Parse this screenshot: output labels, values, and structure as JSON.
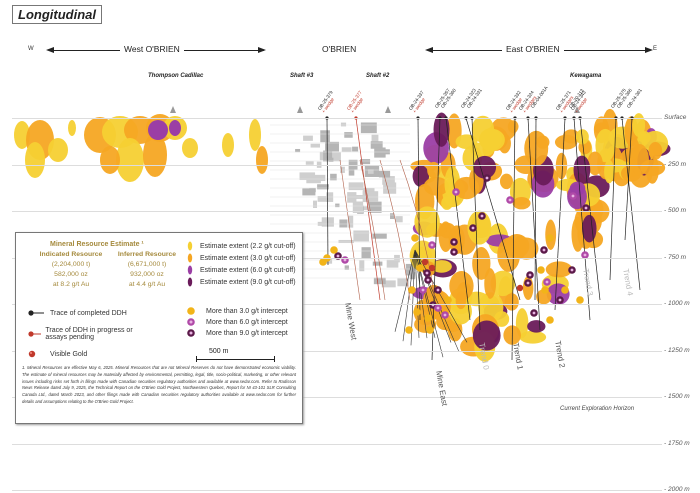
{
  "title": "Longitudinal",
  "directions": {
    "west": "W",
    "east": "E"
  },
  "zones": {
    "west": "West O'BRIEN",
    "center": "O'BRIEN",
    "east": "East O'BRIEN"
  },
  "places": [
    "Thompson Cadillac",
    "Shaft #3",
    "Shaft #2",
    "Kewagama"
  ],
  "drill_holes": [
    {
      "id": "OB-25-379",
      "note": "+ wedge",
      "status": "completed"
    },
    {
      "id": "OB-25-377",
      "note": "+ wedge",
      "status": "in-progress"
    },
    {
      "id": "OB-24-337",
      "note": "+ wedge",
      "status": "completed"
    },
    {
      "id": "OB-25-357",
      "note": "",
      "status": "completed"
    },
    {
      "id": "OB-25-360",
      "note": "",
      "status": "completed"
    },
    {
      "id": "OB-24-323",
      "note": "",
      "status": "completed"
    },
    {
      "id": "OB-24-331",
      "note": "",
      "status": "completed"
    },
    {
      "id": "OB-24-332",
      "note": "+ wedge",
      "status": "completed"
    },
    {
      "id": "OB-24-324",
      "note": "+ wedges",
      "status": "completed"
    },
    {
      "id": "OB-04-001A",
      "note": "",
      "status": "completed"
    },
    {
      "id": "OB-25-371",
      "note": "+ wedges",
      "status": "completed"
    },
    {
      "id": "OB-20-113",
      "note": "",
      "status": "completed"
    },
    {
      "id": "OB-24-343",
      "note": "+ wedge",
      "status": "completed"
    },
    {
      "id": "OB-25-375",
      "note": "",
      "status": "completed"
    },
    {
      "id": "OB-25-366",
      "note": "",
      "status": "completed"
    },
    {
      "id": "OB-24-361",
      "note": "",
      "status": "completed"
    }
  ],
  "depth_axis": [
    "Surface",
    "- 250 m",
    "- 500 m",
    "- 750 m",
    "- 1000 m",
    "- 1250 m",
    "- 1500 m",
    "- 1750 m",
    "- 2000 m"
  ],
  "trends": [
    "Mine West",
    "Mine East",
    "Trend 0",
    "Trend 1",
    "Trend 2",
    "Trend 3",
    "Trend 4"
  ],
  "horizon_label": "Current Exploration Horizon",
  "legend": {
    "mre_title": "Mineral Resource Estimate ¹",
    "indicated": {
      "label": "Indicated Resource",
      "tonnes": "(2,204,000 t)",
      "ounces": "582,000 oz",
      "grade": "at 8.2 g/t Au"
    },
    "inferred": {
      "label": "Inferred Resource",
      "tonnes": "(6,671,000 t)",
      "ounces": "932,000 oz",
      "grade": "at 4.4 g/t Au"
    },
    "traces": [
      {
        "label": "Trace of completed DDH",
        "color": "#222222"
      },
      {
        "label": "Trace of DDH in progress or assays pending",
        "color": "#c0392b"
      },
      {
        "label": "Visible Gold",
        "color": "#c0392b"
      }
    ],
    "extents": [
      {
        "label": "Estimate extent (2.2 g/t cut-off)",
        "color": "#f5d033"
      },
      {
        "label": "Estimate extent (3.0 g/t cut-off)",
        "color": "#f5a623"
      },
      {
        "label": "Estimate extent (6.0 g/t cut-off)",
        "color": "#9b3ea5"
      },
      {
        "label": "Estimate extent (9.0 g/t cut-off)",
        "color": "#6a1b5a"
      }
    ],
    "intercepts": [
      {
        "label": "More than 3.0 g/t intercept",
        "color": "#f2b419"
      },
      {
        "label": "More than 6.0 g/t intercept",
        "color": "#b04aa8"
      },
      {
        "label": "More than 9.0 g/t intercept",
        "color": "#5c1a4a"
      }
    ],
    "scale_bar": "500 m",
    "footnote": "1. Mineral Resources are effective May 6, 2025. Mineral Resources that are not Mineral Reserves do not have demonstrated economic viability. The estimate of mineral resources may be materially affected by environmental, permitting, legal, title, socio-political, marketing, or other relevant issues including risks set forth in filings made with Canadian securities regulatory authorities and available at www.sedar.com. Refer to Radisson News Release dated July 9, 2025, the Technical Report on the O'Brien Gold Project, Northwestern Quebec, Report for NI 43-101 SLR Consulting Canada Ltd., dated March 2023, and other filings made with Canadian securities regulatory authorities available at www.sedar.com for further details and assumptions relating to the O'Brien Gold Project."
  }
}
